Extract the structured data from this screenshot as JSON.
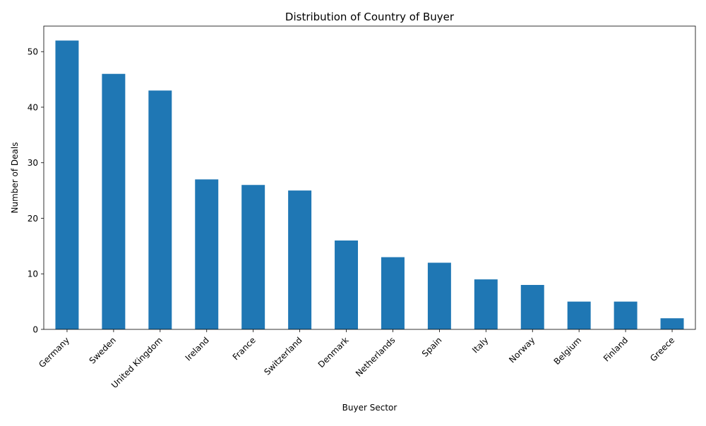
{
  "chart_data": {
    "type": "bar",
    "title": "Distribution of Country of Buyer",
    "xlabel": "Buyer Sector",
    "ylabel": "Number of Deals",
    "categories": [
      "Germany",
      "Sweden",
      "United Kingdom",
      "Ireland",
      "France",
      "Switzerland",
      "Denmark",
      "Netherlands",
      "Spain",
      "Italy",
      "Norway",
      "Belgium",
      "Finland",
      "Greece"
    ],
    "values": [
      52,
      46,
      43,
      27,
      26,
      25,
      16,
      13,
      12,
      9,
      8,
      5,
      5,
      2
    ],
    "ylim": [
      0,
      54.6
    ],
    "yticks": [
      0,
      10,
      20,
      30,
      40,
      50
    ],
    "bar_color": "#1f77b4",
    "grid": false,
    "legend": "none"
  }
}
